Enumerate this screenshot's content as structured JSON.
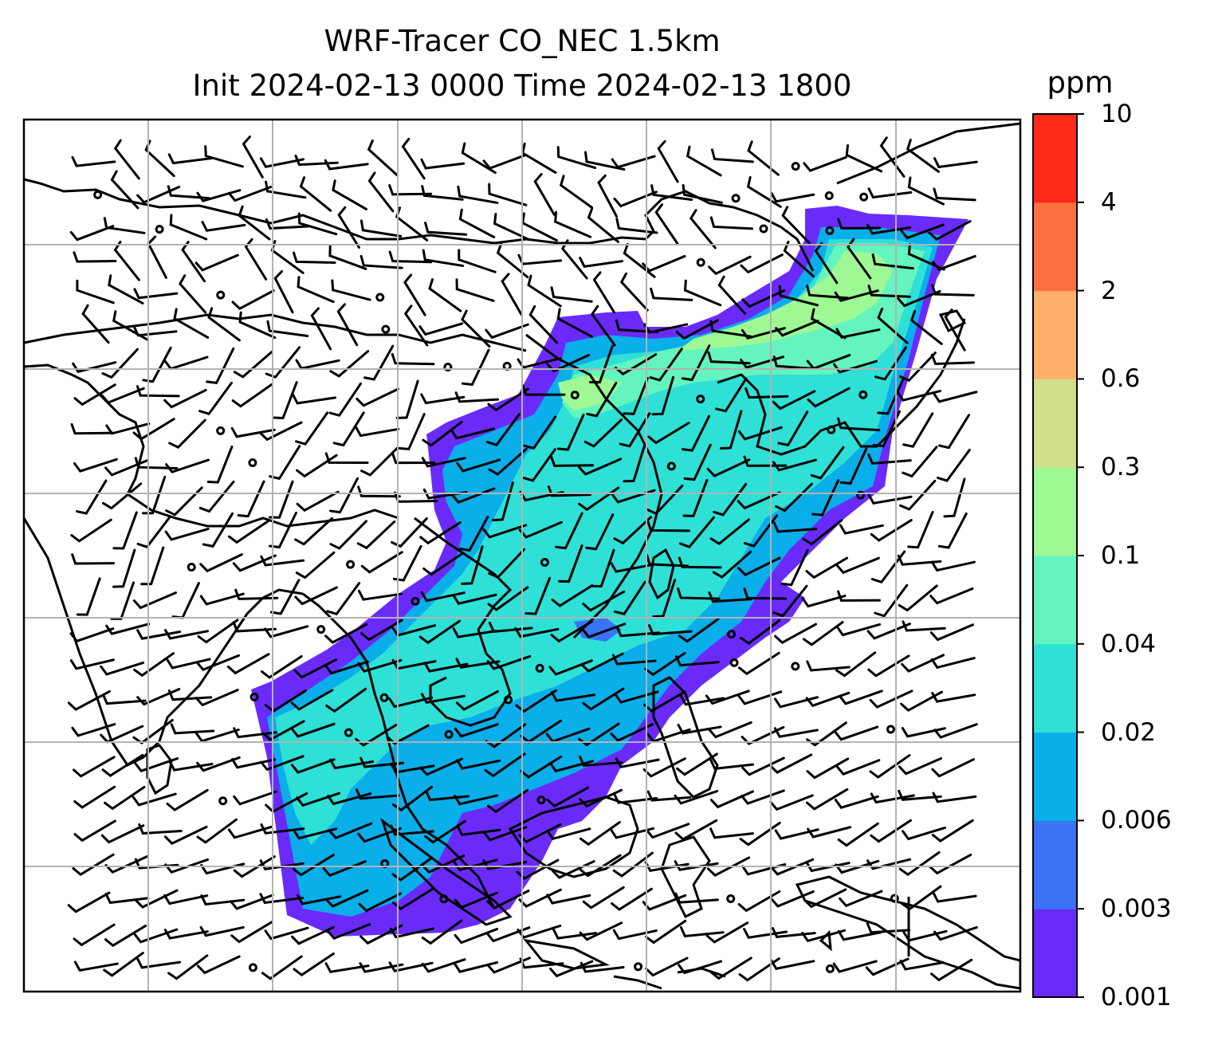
{
  "title": {
    "line1": "WRF-Tracer CO_NEC 1.5km",
    "line2": "Init 2024-02-13 0000 Time 2024-02-13 1800"
  },
  "map": {
    "variable": "CO_NEC tracer concentration",
    "has_wind_barbs": true,
    "has_coastlines": true,
    "grid": true
  },
  "colorbar": {
    "unit": "ppm",
    "tick_labels": [
      "0.001",
      "0.003",
      "0.006",
      "0.02",
      "0.04",
      "0.1",
      "0.3",
      "0.6",
      "2",
      "4",
      "10"
    ],
    "colors": [
      "#6a2bfa",
      "#3a73f5",
      "#0aaee9",
      "#2ee0d6",
      "#64f5be",
      "#9ef894",
      "#d0e08a",
      "#feb16a",
      "#ff7040",
      "#ff2a18"
    ]
  }
}
